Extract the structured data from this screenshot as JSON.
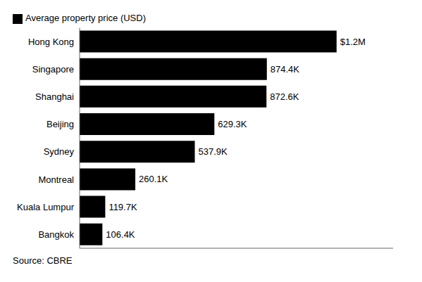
{
  "chart_data": {
    "type": "bar",
    "orientation": "horizontal",
    "categories": [
      "Hong Kong",
      "Singapore",
      "Shanghai",
      "Beijing",
      "Sydney",
      "Montreal",
      "Kuala Lumpur",
      "Bangkok"
    ],
    "series": [
      {
        "name": "Average property price (USD)",
        "color": "#000000",
        "values": [
          1200000,
          874400,
          872600,
          629300,
          537900,
          260100,
          119700,
          106400
        ],
        "value_labels": [
          "$1.2M",
          "874.4K",
          "872.6K",
          "629.3K",
          "537.9K",
          "260.1K",
          "119.7K",
          "106.4K"
        ]
      }
    ],
    "xlim": [
      0,
      1464000
    ],
    "data_labels": true,
    "tick_labels": "y",
    "grid": false,
    "legend": "upper left",
    "annotations": [
      "Source: CBRE"
    ]
  }
}
